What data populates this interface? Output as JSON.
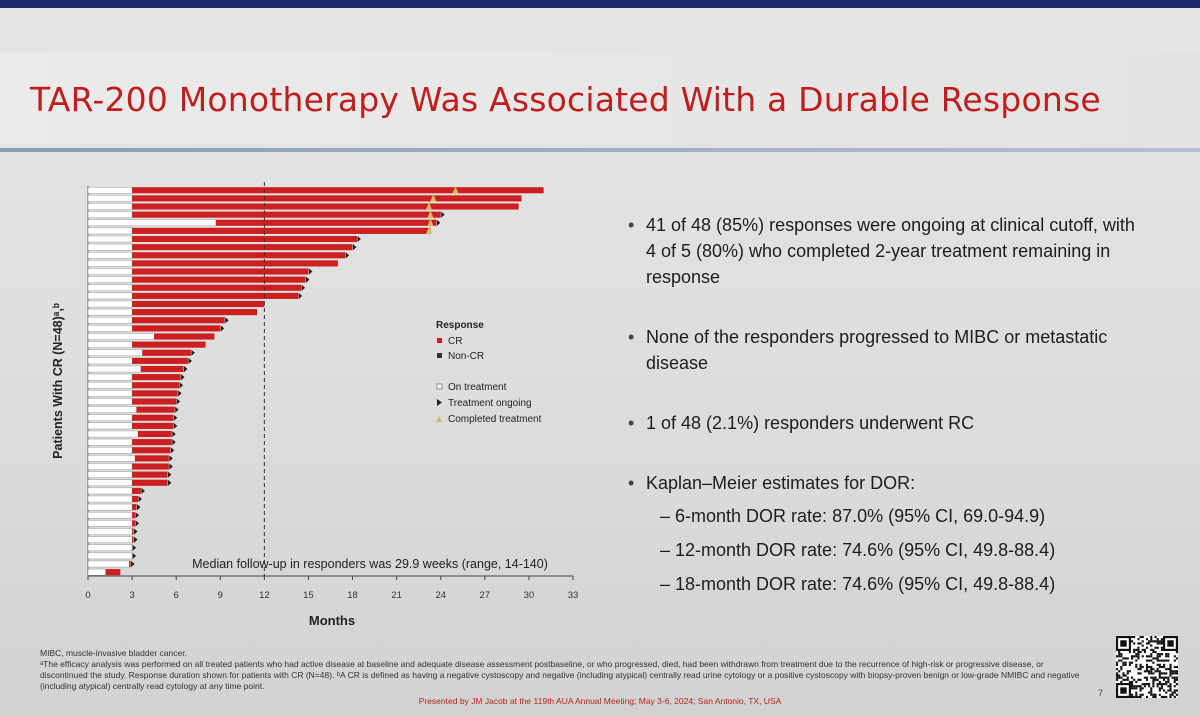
{
  "slide": {
    "title": "TAR-200 Monotherapy Was Associated With a Durable Response",
    "page_number": "7"
  },
  "bullets": [
    {
      "text": "41 of 48 (85%) responses were ongoing at clinical cutoff, with 4 of 5 (80%) who completed 2-year treatment remaining in response"
    },
    {
      "text": "None of the responders progressed to MIBC or metastatic disease"
    },
    {
      "text": "1 of 48 (2.1%) responders underwent RC"
    },
    {
      "text": "Kaplan–Meier estimates for DOR:",
      "sub": [
        "– 6-month DOR rate: 87.0% (95% CI, 69.0-94.9)",
        "– 12-month DOR rate: 74.6% (95% CI, 49.8-88.4)",
        "– 18-month DOR rate: 74.6% (95% CI, 49.8-88.4)"
      ]
    }
  ],
  "footnotes": {
    "abbrev": "MIBC, muscle-invasive bladder cancer.",
    "a": "ᵃThe efficacy analysis was performed on all treated patients who had active disease at baseline and adequate disease assessment postbaseline, or who progressed, died, had been withdrawn from treatment due to the recurrence of high-risk or progressive disease, or discontinued the study. Response duration shown for patients with CR (N=48). ᵇA CR is defined as having a negative cystoscopy and negative (including atypical) centrally read urine cytology or a positive cystoscopy with biopsy-proven benign or low-grade NMIBC and negative (including atypical) centrally read cytology at any time point.",
    "presented": "Presented by JM Jacob at the 119th AUA Annual Meeting; May 3-6, 2024; San Antonio, TX, USA"
  },
  "colors": {
    "cr": "#cc1f1f",
    "treatment": "#ffffff",
    "completed": "#d9b860",
    "title": "#c01d1d"
  },
  "chart_data": {
    "type": "bar",
    "orientation": "horizontal-swimmer",
    "xlabel": "Months",
    "ylabel": "Patients With CR (N=48)ᵃ,ᵇ",
    "xlim": [
      0,
      33
    ],
    "xticks": [
      0,
      3,
      6,
      9,
      12,
      15,
      18,
      21,
      24,
      27,
      30,
      33
    ],
    "reference_line": {
      "x": 12,
      "style": "dashed"
    },
    "annotation": "Median follow-up in responders was 29.9 weeks (range, 14-140)",
    "legend": {
      "position": "center-right",
      "title": "Response",
      "items": [
        {
          "label": "CR",
          "symbol": "square",
          "color": "#cc1f1f"
        },
        {
          "label": "Non-CR",
          "symbol": "square",
          "color": "#333333"
        },
        {
          "label": "On treatment",
          "symbol": "open-square",
          "color": "#777777"
        },
        {
          "label": "Treatment ongoing",
          "symbol": "arrow",
          "color": "#222222"
        },
        {
          "label": "Completed treatment",
          "symbol": "triangle",
          "color": "#d9b860"
        }
      ]
    },
    "series": [
      {
        "treatment_end": 3,
        "cr_start": 3,
        "end": 31.0,
        "completed_at": 25.0,
        "ongoing": false
      },
      {
        "treatment_end": 3,
        "cr_start": 3,
        "end": 29.5,
        "completed_at": 23.5,
        "ongoing": false
      },
      {
        "treatment_end": 3,
        "cr_start": 3,
        "end": 29.3,
        "completed_at": 23.2,
        "ongoing": false
      },
      {
        "treatment_end": 3,
        "cr_start": 3,
        "end": 24.0,
        "completed_at": 23.3,
        "ongoing": true
      },
      {
        "treatment_end": 8.7,
        "cr_start": 8.7,
        "end": 23.7,
        "completed_at": 23.3,
        "ongoing": true
      },
      {
        "treatment_end": 3,
        "cr_start": 3,
        "end": 23.3,
        "completed_at": 23.2,
        "ongoing": false
      },
      {
        "treatment_end": 3,
        "cr_start": 3,
        "end": 18.3,
        "completed_at": null,
        "ongoing": true
      },
      {
        "treatment_end": 3,
        "cr_start": 3,
        "end": 18.0,
        "completed_at": null,
        "ongoing": true
      },
      {
        "treatment_end": 3,
        "cr_start": 3,
        "end": 17.5,
        "completed_at": null,
        "ongoing": true
      },
      {
        "treatment_end": 3,
        "cr_start": 3,
        "end": 17.0,
        "completed_at": null,
        "ongoing": false
      },
      {
        "treatment_end": 3,
        "cr_start": 3,
        "end": 15.0,
        "completed_at": null,
        "ongoing": true
      },
      {
        "treatment_end": 3,
        "cr_start": 3,
        "end": 14.8,
        "completed_at": null,
        "ongoing": true
      },
      {
        "treatment_end": 3,
        "cr_start": 3,
        "end": 14.5,
        "completed_at": null,
        "ongoing": true
      },
      {
        "treatment_end": 3,
        "cr_start": 3,
        "end": 14.3,
        "completed_at": null,
        "ongoing": true
      },
      {
        "treatment_end": 3,
        "cr_start": 3,
        "end": 12.0,
        "completed_at": null,
        "ongoing": false
      },
      {
        "treatment_end": 3,
        "cr_start": 3,
        "end": 11.5,
        "completed_at": null,
        "ongoing": false
      },
      {
        "treatment_end": 3,
        "cr_start": 3,
        "end": 9.3,
        "completed_at": null,
        "ongoing": true
      },
      {
        "treatment_end": 3,
        "cr_start": 3,
        "end": 9.0,
        "completed_at": null,
        "ongoing": true
      },
      {
        "treatment_end": 4.5,
        "cr_start": 4.5,
        "end": 8.6,
        "completed_at": null,
        "ongoing": false
      },
      {
        "treatment_end": 3,
        "cr_start": 3,
        "end": 8.0,
        "completed_at": null,
        "ongoing": false
      },
      {
        "treatment_end": 3.7,
        "cr_start": 3.7,
        "end": 7.0,
        "completed_at": null,
        "ongoing": true
      },
      {
        "treatment_end": 3,
        "cr_start": 3,
        "end": 6.8,
        "completed_at": null,
        "ongoing": true
      },
      {
        "treatment_end": 3.6,
        "cr_start": 3.6,
        "end": 6.5,
        "completed_at": null,
        "ongoing": true
      },
      {
        "treatment_end": 3,
        "cr_start": 3,
        "end": 6.3,
        "completed_at": null,
        "ongoing": true
      },
      {
        "treatment_end": 3,
        "cr_start": 3,
        "end": 6.2,
        "completed_at": null,
        "ongoing": true
      },
      {
        "treatment_end": 3,
        "cr_start": 3,
        "end": 6.1,
        "completed_at": null,
        "ongoing": true
      },
      {
        "treatment_end": 3,
        "cr_start": 3,
        "end": 6.0,
        "completed_at": null,
        "ongoing": true
      },
      {
        "treatment_end": 3.3,
        "cr_start": 3.3,
        "end": 5.9,
        "completed_at": null,
        "ongoing": true
      },
      {
        "treatment_end": 3,
        "cr_start": 3,
        "end": 5.8,
        "completed_at": null,
        "ongoing": true
      },
      {
        "treatment_end": 3,
        "cr_start": 3,
        "end": 5.8,
        "completed_at": null,
        "ongoing": true
      },
      {
        "treatment_end": 3.4,
        "cr_start": 3.4,
        "end": 5.7,
        "completed_at": null,
        "ongoing": true
      },
      {
        "treatment_end": 3,
        "cr_start": 3,
        "end": 5.7,
        "completed_at": null,
        "ongoing": true
      },
      {
        "treatment_end": 3,
        "cr_start": 3,
        "end": 5.6,
        "completed_at": null,
        "ongoing": true
      },
      {
        "treatment_end": 3.2,
        "cr_start": 3.2,
        "end": 5.5,
        "completed_at": null,
        "ongoing": true
      },
      {
        "treatment_end": 3,
        "cr_start": 3,
        "end": 5.5,
        "completed_at": null,
        "ongoing": true
      },
      {
        "treatment_end": 3,
        "cr_start": 3,
        "end": 5.4,
        "completed_at": null,
        "ongoing": true
      },
      {
        "treatment_end": 3,
        "cr_start": 3,
        "end": 5.4,
        "completed_at": null,
        "ongoing": true
      },
      {
        "treatment_end": 3,
        "cr_start": 3,
        "end": 3.6,
        "completed_at": null,
        "ongoing": true
      },
      {
        "treatment_end": 3,
        "cr_start": 3,
        "end": 3.4,
        "completed_at": null,
        "ongoing": true
      },
      {
        "treatment_end": 3,
        "cr_start": 3,
        "end": 3.3,
        "completed_at": null,
        "ongoing": true
      },
      {
        "treatment_end": 3,
        "cr_start": 3,
        "end": 3.2,
        "completed_at": null,
        "ongoing": true
      },
      {
        "treatment_end": 3,
        "cr_start": 3,
        "end": 3.2,
        "completed_at": null,
        "ongoing": true
      },
      {
        "treatment_end": 3,
        "cr_start": 3,
        "end": 3.1,
        "completed_at": null,
        "ongoing": true
      },
      {
        "treatment_end": 3,
        "cr_start": 3,
        "end": 3.1,
        "completed_at": null,
        "ongoing": true
      },
      {
        "treatment_end": 3,
        "cr_start": 3,
        "end": 3.0,
        "completed_at": null,
        "ongoing": true
      },
      {
        "treatment_end": 3,
        "cr_start": 3,
        "end": 3.0,
        "completed_at": null,
        "ongoing": true
      },
      {
        "treatment_end": 2.8,
        "cr_start": 2.8,
        "end": 2.9,
        "completed_at": null,
        "ongoing": true
      },
      {
        "treatment_end": 1.2,
        "cr_start": 1.2,
        "end": 2.2,
        "completed_at": null,
        "ongoing": false
      }
    ]
  }
}
